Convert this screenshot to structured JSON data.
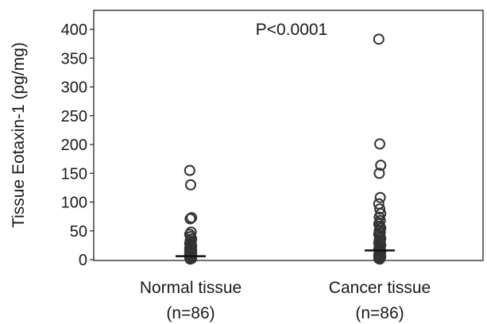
{
  "chart_data": {
    "type": "scatter",
    "title": "",
    "ylabel": "Tissue Eotaxin-1 (pg/mg)",
    "xlabel": "",
    "ylim": [
      0,
      400
    ],
    "yticks": [
      0,
      50,
      100,
      150,
      200,
      250,
      300,
      350,
      400
    ],
    "grid": false,
    "annotation": "P<0.0001",
    "categories": [
      {
        "label": "Normal tissue",
        "sublabel": "(n=86)"
      },
      {
        "label": "Cancer tissue",
        "sublabel": "(n=86)"
      }
    ],
    "series": [
      {
        "values": [
          155,
          130,
          73,
          71,
          48,
          44,
          40,
          36,
          33,
          30,
          28,
          26,
          24,
          22,
          20,
          19,
          18,
          17,
          16,
          15,
          14,
          13,
          12,
          11,
          10,
          9,
          8,
          7,
          6,
          5,
          4,
          3,
          2,
          1
        ],
        "median": 6
      },
      {
        "values": [
          383,
          201,
          164,
          150,
          108,
          97,
          88,
          80,
          74,
          68,
          62,
          58,
          55,
          50,
          47,
          44,
          40,
          37,
          34,
          31,
          29,
          27,
          25,
          22,
          20,
          18,
          16,
          14,
          12,
          10,
          8,
          6,
          5,
          4,
          3,
          2,
          1
        ],
        "median": 16
      }
    ]
  }
}
